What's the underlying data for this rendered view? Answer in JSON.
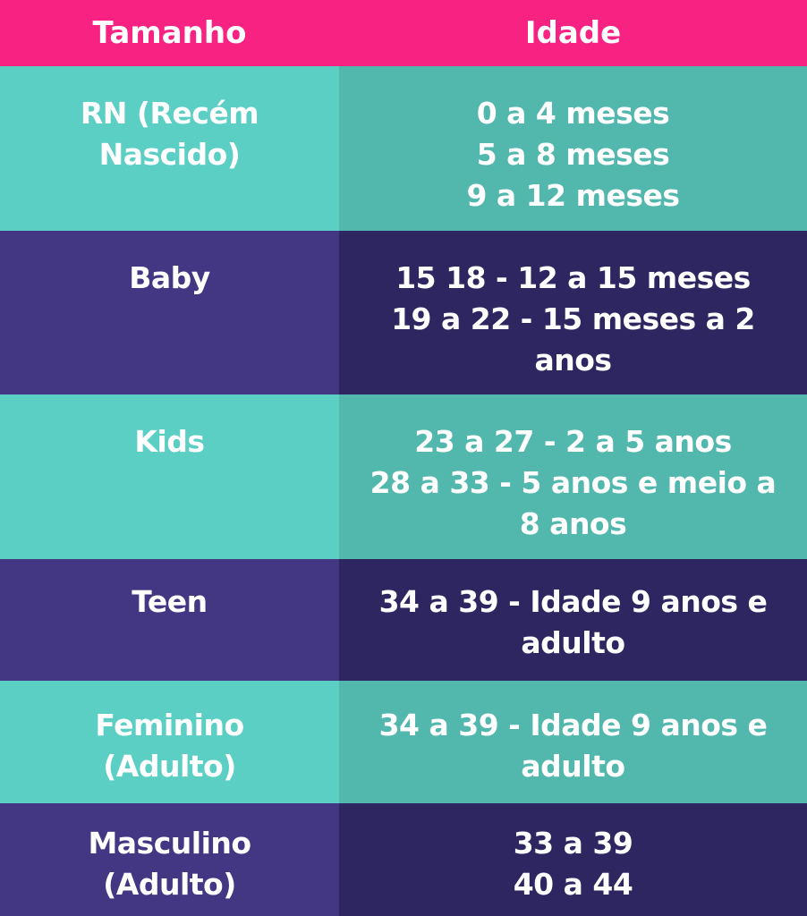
{
  "header": {
    "size_label": "Tamanho",
    "age_label": "Idade"
  },
  "colors": {
    "header": "#f82283",
    "teal_left": "#5ccfc5",
    "teal_right": "#52b7ad",
    "purple_left": "#433683",
    "purple_right": "#2e2660",
    "text": "#ffffff"
  },
  "rows": [
    {
      "size": [
        "RN (Recém",
        "Nascido)"
      ],
      "age": [
        "0 a 4 meses",
        "5 a 8 meses",
        "9 a 12 meses"
      ]
    },
    {
      "size": [
        "Baby"
      ],
      "age": [
        "15 18 - 12 a 15 meses",
        "19 a 22 - 15 meses a 2",
        "anos"
      ]
    },
    {
      "size": [
        "Kids"
      ],
      "age": [
        "23 a 27 - 2 a 5 anos",
        "28 a 33 - 5 anos e meio a",
        "8 anos"
      ]
    },
    {
      "size": [
        "Teen"
      ],
      "age": [
        "34 a 39 - Idade 9 anos e",
        "adulto"
      ]
    },
    {
      "size": [
        "Feminino",
        "(Adulto)"
      ],
      "age": [
        "34 a 39 - Idade 9 anos e",
        "adulto"
      ]
    },
    {
      "size": [
        "Masculino",
        "(Adulto)"
      ],
      "age": [
        "33 a 39",
        "40 a 44"
      ]
    }
  ]
}
